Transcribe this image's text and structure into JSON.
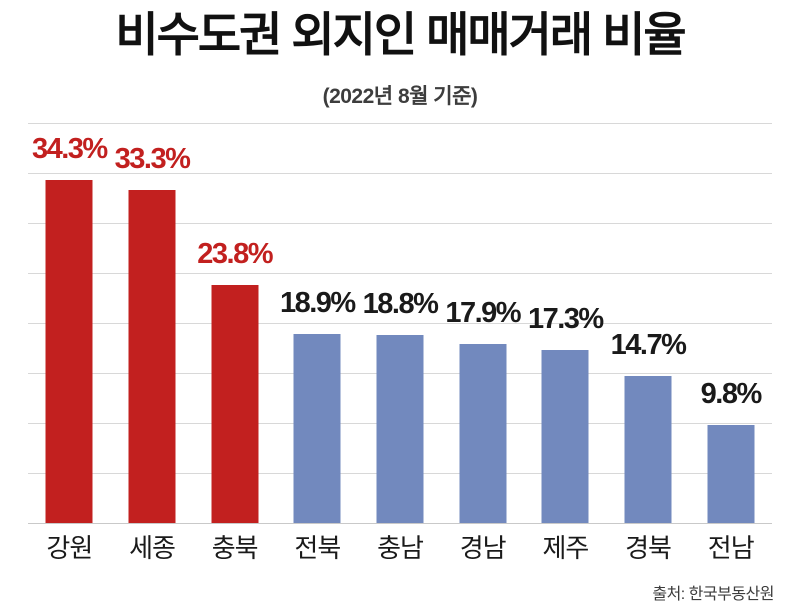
{
  "title": "비수도권 외지인 매매거래 비율",
  "subtitle": "(2022년 8월 기준)",
  "source": "출처: 한국부동산원",
  "colors": {
    "red_bar": "#c2201f",
    "blue_bar": "#7289be",
    "red_label": "#c2201f",
    "dark_label": "#1a1a1a",
    "grid": "#d8d8d8",
    "background": "#ffffff"
  },
  "chart_data": {
    "type": "bar",
    "title": "비수도권 외지인 매매거래 비율",
    "subtitle": "(2022년 8월 기준)",
    "xlabel": "",
    "ylabel": "",
    "ylim": [
      0,
      40
    ],
    "gridline_interval_pct": 5,
    "grid": true,
    "legend": false,
    "categories": [
      "강원",
      "세종",
      "충북",
      "전북",
      "충남",
      "경남",
      "제주",
      "경북",
      "전남"
    ],
    "values": [
      34.3,
      33.3,
      23.8,
      18.9,
      18.8,
      17.9,
      17.3,
      14.7,
      9.8
    ],
    "bars": [
      {
        "category": "강원",
        "value": 34.3,
        "label": "34.3%",
        "bar_color_key": "red_bar",
        "label_color_key": "red_label"
      },
      {
        "category": "세종",
        "value": 33.3,
        "label": "33.3%",
        "bar_color_key": "red_bar",
        "label_color_key": "red_label"
      },
      {
        "category": "충북",
        "value": 23.8,
        "label": "23.8%",
        "bar_color_key": "red_bar",
        "label_color_key": "red_label"
      },
      {
        "category": "전북",
        "value": 18.9,
        "label": "18.9%",
        "bar_color_key": "blue_bar",
        "label_color_key": "dark_label"
      },
      {
        "category": "충남",
        "value": 18.8,
        "label": "18.8%",
        "bar_color_key": "blue_bar",
        "label_color_key": "dark_label"
      },
      {
        "category": "경남",
        "value": 17.9,
        "label": "17.9%",
        "bar_color_key": "blue_bar",
        "label_color_key": "dark_label"
      },
      {
        "category": "제주",
        "value": 17.3,
        "label": "17.3%",
        "bar_color_key": "blue_bar",
        "label_color_key": "dark_label"
      },
      {
        "category": "경북",
        "value": 14.7,
        "label": "14.7%",
        "bar_color_key": "blue_bar",
        "label_color_key": "dark_label"
      },
      {
        "category": "전남",
        "value": 9.8,
        "label": "9.8%",
        "bar_color_key": "blue_bar",
        "label_color_key": "dark_label"
      }
    ]
  }
}
